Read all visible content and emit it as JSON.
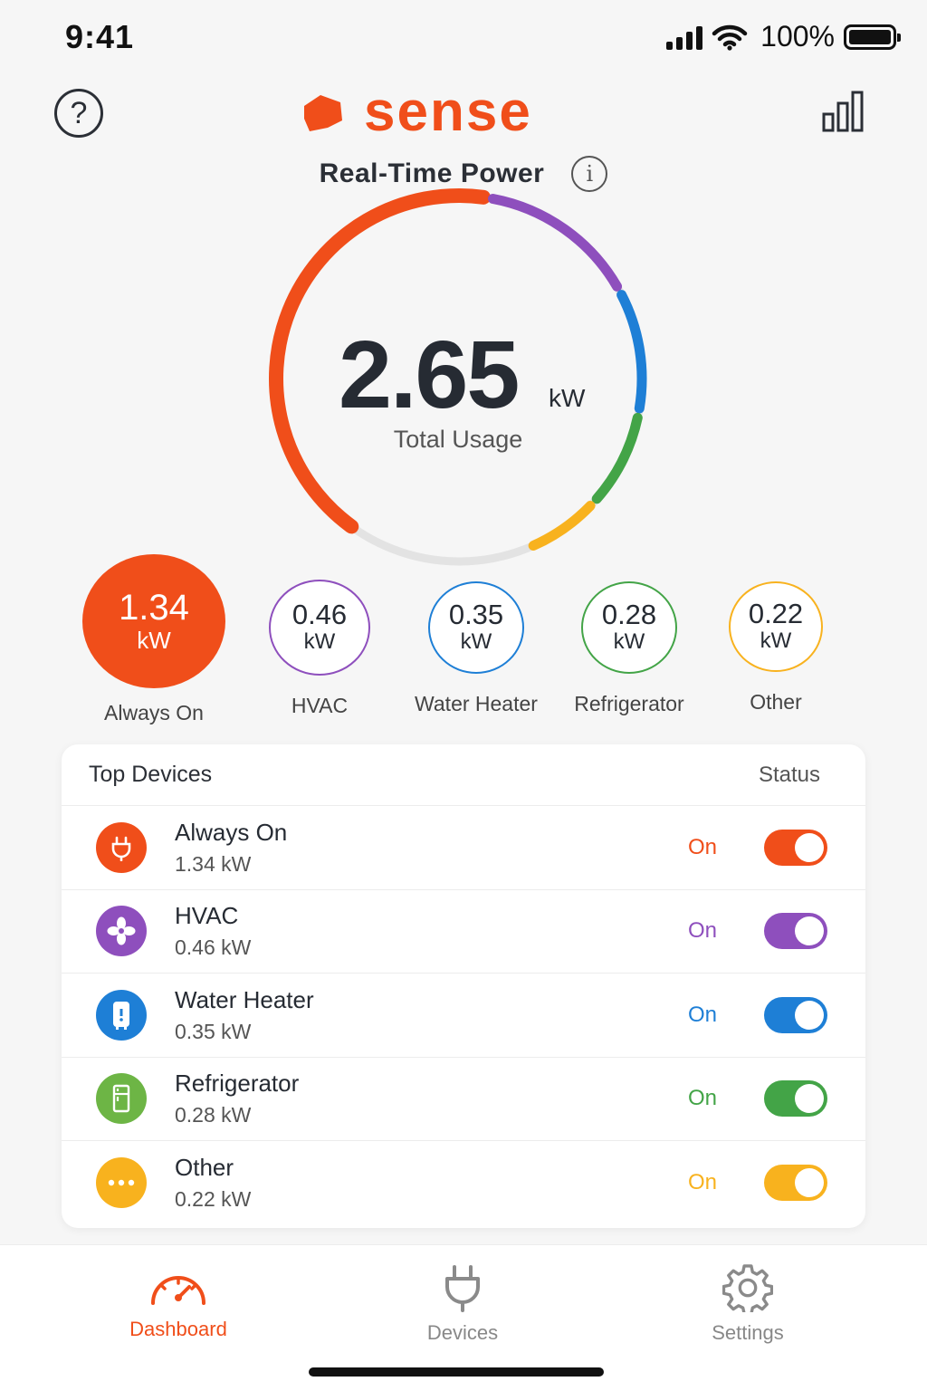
{
  "status_bar": {
    "time": "9:41",
    "battery": "100%"
  },
  "header": {
    "brand": "sense",
    "help_icon": "question-circle-icon",
    "history_icon": "bar-chart-icon"
  },
  "realtime": {
    "title": "Real-Time Power",
    "value": "2.65",
    "unit": "kW",
    "label": "Total Usage"
  },
  "breakdown": [
    {
      "value": "1.34",
      "unit": "kW",
      "label": "Always On",
      "color": "#f04e1a"
    },
    {
      "value": "0.46",
      "unit": "kW",
      "label": "HVAC",
      "color": "#8e4fbd"
    },
    {
      "value": "0.35",
      "unit": "kW",
      "label": "Water Heater",
      "color": "#1e7fd6"
    },
    {
      "value": "0.28",
      "unit": "kW",
      "label": "Refrigerator",
      "color": "#43a447"
    },
    {
      "value": "0.22",
      "unit": "kW",
      "label": "Other",
      "color": "#f8b21e"
    }
  ],
  "top_devices": {
    "title": "Top Devices",
    "status_header": "Status",
    "rows": [
      {
        "name": "Always On",
        "kw": "1.34 kW",
        "state": "On",
        "color": "#f04e1a",
        "icon": "plug-icon"
      },
      {
        "name": "HVAC",
        "kw": "0.46 kW",
        "state": "On",
        "color": "#8e4fbd",
        "icon": "fan-icon"
      },
      {
        "name": "Water Heater",
        "kw": "0.35 kW",
        "state": "On",
        "color": "#1e7fd6",
        "icon": "water-heater-icon"
      },
      {
        "name": "Refrigerator",
        "kw": "0.28 kW",
        "state": "On",
        "color": "#43a447",
        "icon": "refrigerator-icon"
      },
      {
        "name": "Other",
        "kw": "0.22 kW",
        "state": "On",
        "color": "#f8b21e",
        "icon": "more-dots-icon"
      }
    ]
  },
  "tabs": {
    "dashboard": "Dashboard",
    "devices": "Devices",
    "settings": "Settings"
  },
  "accent": "#f04e1a"
}
